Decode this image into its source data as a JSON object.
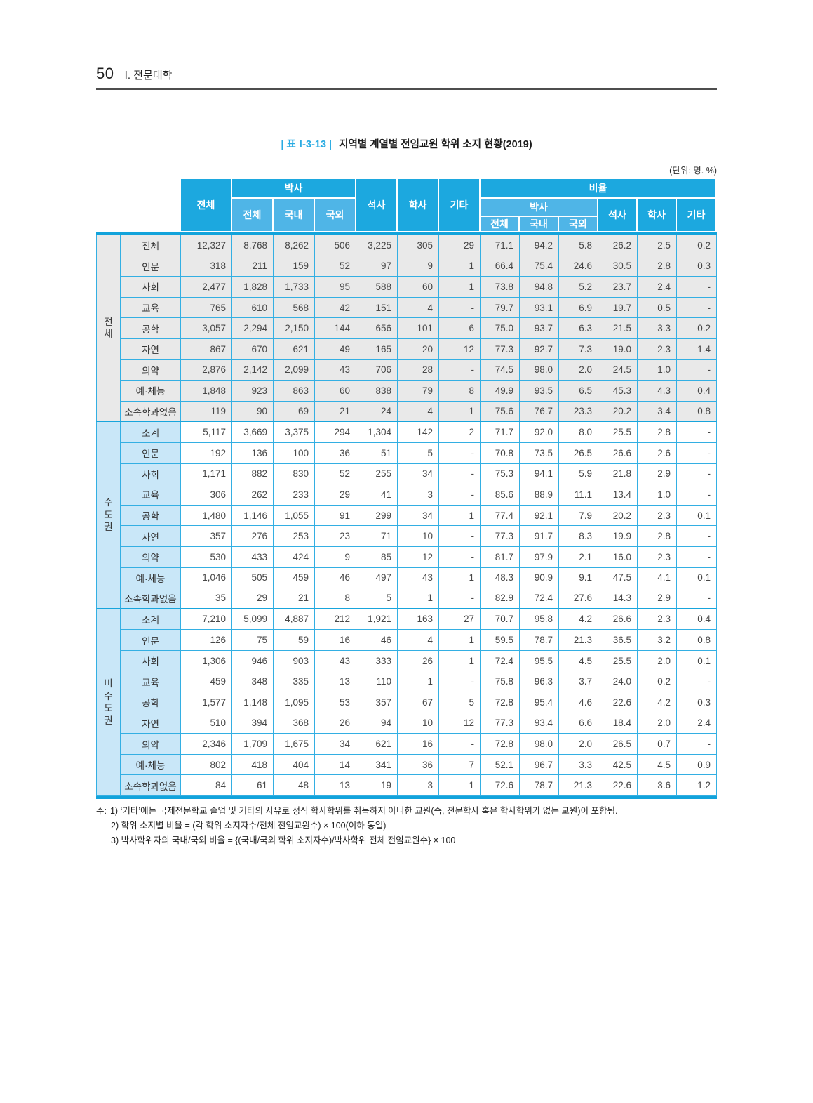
{
  "page": {
    "number": "50",
    "section": "Ⅰ. 전문대학"
  },
  "caption": {
    "label": "| 표 Ⅰ-3-13 |",
    "title": "지역별 계열별 전임교원 학위 소지 현황(2019)",
    "unit_note": "(단위: 명. %)"
  },
  "table": {
    "header": {
      "col_total": "전체",
      "doctorate": "박사",
      "doctorate_sub": [
        "전체",
        "국내",
        "국외"
      ],
      "masters": "석사",
      "bachelors": "학사",
      "others": "기타",
      "ratio": "비율"
    },
    "groups": [
      {
        "label": "전체",
        "tint": "gray",
        "rows": [
          {
            "label": "전체",
            "values": [
              "12,327",
              "8,768",
              "8,262",
              "506",
              "3,225",
              "305",
              "29",
              "71.1",
              "94.2",
              "5.8",
              "26.2",
              "2.5",
              "0.2"
            ]
          },
          {
            "label": "인문",
            "values": [
              "318",
              "211",
              "159",
              "52",
              "97",
              "9",
              "1",
              "66.4",
              "75.4",
              "24.6",
              "30.5",
              "2.8",
              "0.3"
            ]
          },
          {
            "label": "사회",
            "values": [
              "2,477",
              "1,828",
              "1,733",
              "95",
              "588",
              "60",
              "1",
              "73.8",
              "94.8",
              "5.2",
              "23.7",
              "2.4",
              "-"
            ]
          },
          {
            "label": "교육",
            "values": [
              "765",
              "610",
              "568",
              "42",
              "151",
              "4",
              "-",
              "79.7",
              "93.1",
              "6.9",
              "19.7",
              "0.5",
              "-"
            ]
          },
          {
            "label": "공학",
            "values": [
              "3,057",
              "2,294",
              "2,150",
              "144",
              "656",
              "101",
              "6",
              "75.0",
              "93.7",
              "6.3",
              "21.5",
              "3.3",
              "0.2"
            ]
          },
          {
            "label": "자연",
            "values": [
              "867",
              "670",
              "621",
              "49",
              "165",
              "20",
              "12",
              "77.3",
              "92.7",
              "7.3",
              "19.0",
              "2.3",
              "1.4"
            ]
          },
          {
            "label": "의약",
            "values": [
              "2,876",
              "2,142",
              "2,099",
              "43",
              "706",
              "28",
              "-",
              "74.5",
              "98.0",
              "2.0",
              "24.5",
              "1.0",
              "-"
            ]
          },
          {
            "label": "예·체능",
            "values": [
              "1,848",
              "923",
              "863",
              "60",
              "838",
              "79",
              "8",
              "49.9",
              "93.5",
              "6.5",
              "45.3",
              "4.3",
              "0.4"
            ]
          },
          {
            "label": "소속학과없음",
            "values": [
              "119",
              "90",
              "69",
              "21",
              "24",
              "4",
              "1",
              "75.6",
              "76.7",
              "23.3",
              "20.2",
              "3.4",
              "0.8"
            ]
          }
        ]
      },
      {
        "label": "수도권",
        "tint": "blue",
        "rows": [
          {
            "label": "소계",
            "values": [
              "5,117",
              "3,669",
              "3,375",
              "294",
              "1,304",
              "142",
              "2",
              "71.7",
              "92.0",
              "8.0",
              "25.5",
              "2.8",
              "-"
            ]
          },
          {
            "label": "인문",
            "values": [
              "192",
              "136",
              "100",
              "36",
              "51",
              "5",
              "-",
              "70.8",
              "73.5",
              "26.5",
              "26.6",
              "2.6",
              "-"
            ]
          },
          {
            "label": "사회",
            "values": [
              "1,171",
              "882",
              "830",
              "52",
              "255",
              "34",
              "-",
              "75.3",
              "94.1",
              "5.9",
              "21.8",
              "2.9",
              "-"
            ]
          },
          {
            "label": "교육",
            "values": [
              "306",
              "262",
              "233",
              "29",
              "41",
              "3",
              "-",
              "85.6",
              "88.9",
              "11.1",
              "13.4",
              "1.0",
              "-"
            ]
          },
          {
            "label": "공학",
            "values": [
              "1,480",
              "1,146",
              "1,055",
              "91",
              "299",
              "34",
              "1",
              "77.4",
              "92.1",
              "7.9",
              "20.2",
              "2.3",
              "0.1"
            ]
          },
          {
            "label": "자연",
            "values": [
              "357",
              "276",
              "253",
              "23",
              "71",
              "10",
              "-",
              "77.3",
              "91.7",
              "8.3",
              "19.9",
              "2.8",
              "-"
            ]
          },
          {
            "label": "의약",
            "values": [
              "530",
              "433",
              "424",
              "9",
              "85",
              "12",
              "-",
              "81.7",
              "97.9",
              "2.1",
              "16.0",
              "2.3",
              "-"
            ]
          },
          {
            "label": "예·체능",
            "values": [
              "1,046",
              "505",
              "459",
              "46",
              "497",
              "43",
              "1",
              "48.3",
              "90.9",
              "9.1",
              "47.5",
              "4.1",
              "0.1"
            ]
          },
          {
            "label": "소속학과없음",
            "values": [
              "35",
              "29",
              "21",
              "8",
              "5",
              "1",
              "-",
              "82.9",
              "72.4",
              "27.6",
              "14.3",
              "2.9",
              "-"
            ]
          }
        ]
      },
      {
        "label": "비수도권",
        "tint": "blue",
        "rows": [
          {
            "label": "소계",
            "values": [
              "7,210",
              "5,099",
              "4,887",
              "212",
              "1,921",
              "163",
              "27",
              "70.7",
              "95.8",
              "4.2",
              "26.6",
              "2.3",
              "0.4"
            ]
          },
          {
            "label": "인문",
            "values": [
              "126",
              "75",
              "59",
              "16",
              "46",
              "4",
              "1",
              "59.5",
              "78.7",
              "21.3",
              "36.5",
              "3.2",
              "0.8"
            ]
          },
          {
            "label": "사회",
            "values": [
              "1,306",
              "946",
              "903",
              "43",
              "333",
              "26",
              "1",
              "72.4",
              "95.5",
              "4.5",
              "25.5",
              "2.0",
              "0.1"
            ]
          },
          {
            "label": "교육",
            "values": [
              "459",
              "348",
              "335",
              "13",
              "110",
              "1",
              "-",
              "75.8",
              "96.3",
              "3.7",
              "24.0",
              "0.2",
              "-"
            ]
          },
          {
            "label": "공학",
            "values": [
              "1,577",
              "1,148",
              "1,095",
              "53",
              "357",
              "67",
              "5",
              "72.8",
              "95.4",
              "4.6",
              "22.6",
              "4.2",
              "0.3"
            ]
          },
          {
            "label": "자연",
            "values": [
              "510",
              "394",
              "368",
              "26",
              "94",
              "10",
              "12",
              "77.3",
              "93.4",
              "6.6",
              "18.4",
              "2.0",
              "2.4"
            ]
          },
          {
            "label": "의약",
            "values": [
              "2,346",
              "1,709",
              "1,675",
              "34",
              "621",
              "16",
              "-",
              "72.8",
              "98.0",
              "2.0",
              "26.5",
              "0.7",
              "-"
            ]
          },
          {
            "label": "예·체능",
            "values": [
              "802",
              "418",
              "404",
              "14",
              "341",
              "36",
              "7",
              "52.1",
              "96.7",
              "3.3",
              "42.5",
              "4.5",
              "0.9"
            ]
          },
          {
            "label": "소속학과없음",
            "values": [
              "84",
              "61",
              "48",
              "13",
              "19",
              "3",
              "1",
              "72.6",
              "78.7",
              "21.3",
              "22.6",
              "3.6",
              "1.2"
            ]
          }
        ]
      }
    ]
  },
  "notes": {
    "prefix": "주:",
    "items": [
      "1) ‘기타’에는 국제전문학교 졸업 및 기타의 사유로 정식 학사학위를 취득하지 아니한 교원(즉, 전문학사 혹은 학사학위가 없는 교원)이 포함됨.",
      "2) 학위 소지별 비율 = (각 학위 소지자수/전체 전임교원수) × 100(이하 동일)",
      "3) 박사학위자의 국내/국외 비율 = {(국내/국외 학위 소지자수)/박사학위 전체 전임교원수} × 100"
    ]
  },
  "colors": {
    "header_cyan": "#1ca8df",
    "header_sub_blue": "#4fb5e7",
    "label_light_blue": "#c9e7f8",
    "row_gray": "#e9e9e9",
    "grid_border": "#33afe3",
    "thick_rule": "#12a3db",
    "caption_accent": "#29abe2"
  }
}
